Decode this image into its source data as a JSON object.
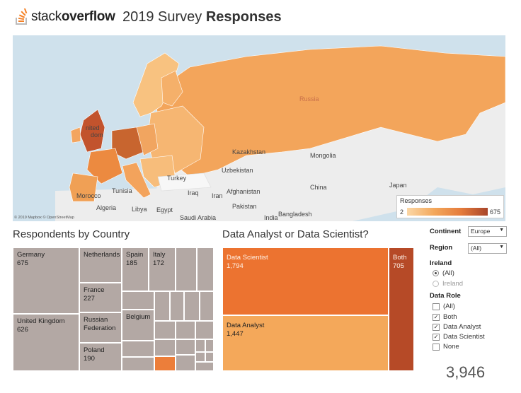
{
  "header": {
    "logo_light": "stack",
    "logo_bold": "overflow",
    "title_light": "2019 Survey ",
    "title_bold": "Responses"
  },
  "map": {
    "labels": {
      "russia": "Russia",
      "kazakhstan": "Kazakhstan",
      "mongolia": "Mongolia",
      "uzbekistan": "Uzbekistan",
      "turkey": "Turkey",
      "china": "China",
      "japan": "Japan",
      "iraq": "Iraq",
      "iran": "Iran",
      "afghanistan": "Afghanistan",
      "pakistan": "Pakistan",
      "bangladesh": "Bangladesh",
      "morocco": "Morocco",
      "tunisia": "Tunisia",
      "algeria": "Algeria",
      "libya": "Libya",
      "egypt": "Egypt",
      "saudi_arabia": "Saudi Arabia",
      "india": "India",
      "united_kingdom_1": "nited",
      "united_kingdom_2": "dom"
    },
    "attribution": "© 2019 Mapbox © OpenStreetMap",
    "legend": {
      "title": "Responses",
      "min": "2",
      "max": "675"
    },
    "colors": {
      "low": "#fbd7a6",
      "mid": "#f3a85c",
      "high": "#e57c3c",
      "max": "#a8452a"
    }
  },
  "by_country": {
    "title": "Respondents by Country",
    "cells": [
      {
        "name": "Germany",
        "value": "675"
      },
      {
        "name": "United Kingdom",
        "value": "626"
      },
      {
        "name": "Netherlands",
        "value": ""
      },
      {
        "name": "France",
        "value": "227"
      },
      {
        "name": "Russian Federation",
        "value": ""
      },
      {
        "name": "Poland",
        "value": "190"
      },
      {
        "name": "Spain",
        "value": "185"
      },
      {
        "name": "Italy",
        "value": "172"
      },
      {
        "name": "Belgium",
        "value": ""
      }
    ]
  },
  "by_role": {
    "title": "Data Analyst or Data Scientist?",
    "cells": [
      {
        "name": "Data Scientist",
        "value": "1,794",
        "color": "#ec7330"
      },
      {
        "name": "Data Analyst",
        "value": "1,447",
        "color": "#f4a85a"
      },
      {
        "name": "Both",
        "value": "705",
        "color": "#b64a27"
      }
    ]
  },
  "filters": {
    "continent": {
      "label": "Continent",
      "value": "Europe"
    },
    "region": {
      "label": "Region",
      "value": "(All)"
    },
    "country": {
      "label": "Ireland",
      "options": [
        {
          "label": "(All)",
          "selected": true
        },
        {
          "label": "Ireland",
          "selected": false
        }
      ]
    },
    "data_role": {
      "label": "Data Role",
      "options": [
        {
          "label": "(All)",
          "checked": false
        },
        {
          "label": "Both",
          "checked": true
        },
        {
          "label": "Data Analyst",
          "checked": true
        },
        {
          "label": "Data Scientist",
          "checked": true
        },
        {
          "label": "None",
          "checked": false
        }
      ]
    },
    "check_mark": "✓",
    "caret": "▼"
  },
  "total": "3,946"
}
